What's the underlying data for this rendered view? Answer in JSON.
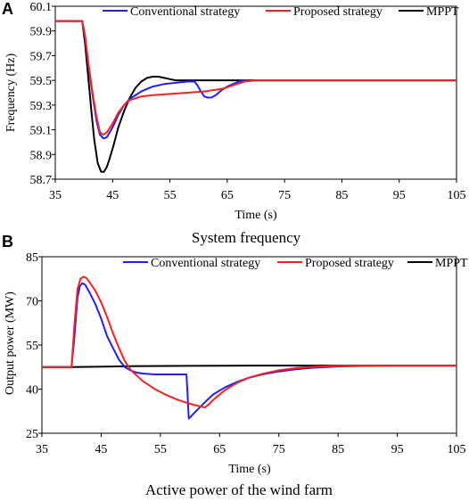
{
  "chart_data": [
    {
      "panel_label": "A",
      "type": "line",
      "caption": "System frequency",
      "xlabel": "Time (s)",
      "ylabel": "Frequency (Hz)",
      "xlim": [
        35,
        105
      ],
      "ylim": [
        58.7,
        60.1
      ],
      "xticks": [
        "35",
        "45",
        "55",
        "65",
        "75",
        "85",
        "95",
        "105"
      ],
      "yticks": [
        "58.7",
        "58.9",
        "59.1",
        "59.3",
        "59.5",
        "59.7",
        "59.9",
        "60.1"
      ],
      "legend_position": "top",
      "series": [
        {
          "name": "Conventional strategy",
          "color": "#1f1fff",
          "x": [
            35,
            39.7,
            40.2,
            40.8,
            41.5,
            42.2,
            42.8,
            43.4,
            44,
            45,
            46,
            47,
            48,
            50,
            52,
            54,
            56,
            58,
            59.3,
            59.8,
            60.4,
            61,
            61.6,
            62.2,
            63,
            64,
            65,
            66,
            67,
            68,
            70,
            75,
            85,
            95,
            105
          ],
          "y": [
            59.98,
            59.98,
            59.85,
            59.62,
            59.38,
            59.17,
            59.06,
            59.03,
            59.04,
            59.12,
            59.22,
            59.3,
            59.35,
            59.41,
            59.45,
            59.47,
            59.48,
            59.49,
            59.49,
            59.46,
            59.41,
            59.37,
            59.36,
            59.36,
            59.38,
            59.42,
            59.45,
            59.47,
            59.49,
            59.5,
            59.5,
            59.5,
            59.5,
            59.5,
            59.5
          ]
        },
        {
          "name": "Proposed strategy",
          "color": "#ff1f1f",
          "x": [
            35,
            39.7,
            40.2,
            40.8,
            41.5,
            42.2,
            42.8,
            43.4,
            44,
            45,
            46,
            47,
            48,
            50,
            52,
            55,
            58,
            61,
            64,
            66,
            68,
            70,
            75,
            85,
            95,
            105
          ],
          "y": [
            59.98,
            59.98,
            59.86,
            59.63,
            59.4,
            59.2,
            59.08,
            59.06,
            59.08,
            59.15,
            59.24,
            59.3,
            59.34,
            59.37,
            59.38,
            59.39,
            59.4,
            59.41,
            59.43,
            59.46,
            59.49,
            59.5,
            59.5,
            59.5,
            59.5,
            59.5
          ]
        },
        {
          "name": "MPPT",
          "color": "#000000",
          "x": [
            35,
            39.7,
            40.2,
            40.8,
            41.3,
            41.8,
            42.4,
            43,
            43.5,
            44,
            44.5,
            45.2,
            46,
            47,
            48,
            49,
            50,
            51,
            52,
            53,
            54,
            55,
            56,
            58,
            60,
            65,
            75,
            85,
            95,
            105
          ],
          "y": [
            59.98,
            59.98,
            59.8,
            59.5,
            59.25,
            59.02,
            58.83,
            58.76,
            58.76,
            58.8,
            58.87,
            58.98,
            59.12,
            59.25,
            59.36,
            59.44,
            59.49,
            59.52,
            59.53,
            59.53,
            59.52,
            59.51,
            59.5,
            59.5,
            59.5,
            59.5,
            59.5,
            59.5,
            59.5,
            59.5
          ]
        }
      ]
    },
    {
      "panel_label": "B",
      "type": "line",
      "caption": "Active power of the wind farm",
      "xlabel": "Time (s)",
      "ylabel": "Output power (MW)",
      "xlim": [
        35,
        105
      ],
      "ylim": [
        25,
        85
      ],
      "xticks": [
        "35",
        "45",
        "55",
        "65",
        "75",
        "85",
        "95",
        "105"
      ],
      "yticks": [
        "25",
        "40",
        "55",
        "70",
        "85"
      ],
      "legend_position": "top-right",
      "series": [
        {
          "name": "Conventional strategy",
          "color": "#1f1fff",
          "x": [
            35,
            40,
            40.5,
            41,
            41.4,
            41.8,
            42.3,
            43,
            44,
            45,
            46,
            47,
            48,
            49,
            50,
            51,
            52,
            54,
            56,
            58,
            59.4,
            59.6,
            59.8,
            60.3,
            61,
            62,
            63,
            64,
            66,
            68,
            70,
            72,
            75,
            78,
            81,
            85,
            90,
            95,
            105
          ],
          "y": [
            47.5,
            47.5,
            58,
            71,
            75,
            76,
            75.5,
            73,
            69,
            64,
            58,
            54,
            50,
            47.5,
            46.3,
            45.6,
            45.3,
            45,
            45,
            45,
            45,
            38,
            30,
            31,
            32.5,
            34.5,
            36.5,
            38.3,
            40.7,
            42.5,
            43.9,
            44.9,
            46,
            46.8,
            47.3,
            47.7,
            47.9,
            48,
            48
          ]
        },
        {
          "name": "Proposed strategy",
          "color": "#ff1f1f",
          "x": [
            35,
            40,
            40.5,
            41,
            41.5,
            42,
            42.5,
            43,
            44,
            45,
            46,
            47,
            48,
            49,
            50,
            52,
            54,
            56,
            58,
            60,
            62,
            62.5,
            63,
            64,
            66,
            68,
            70,
            72,
            75,
            78,
            81,
            85,
            90,
            95,
            105
          ],
          "y": [
            47.5,
            47.5,
            62,
            74,
            77.5,
            78.2,
            77.8,
            76.5,
            73.5,
            69.5,
            64.5,
            59,
            54,
            49.5,
            46.5,
            42.8,
            40.1,
            38,
            36.3,
            35,
            34,
            33.8,
            34.5,
            36.5,
            39.8,
            42.2,
            43.9,
            45.1,
            46.4,
            47.2,
            47.6,
            47.9,
            48,
            48,
            48
          ]
        },
        {
          "name": "MPPT",
          "color": "#000000",
          "x": [
            35,
            40,
            50,
            60,
            70,
            85,
            105
          ],
          "y": [
            47.5,
            47.5,
            47.8,
            47.9,
            48,
            48,
            48
          ]
        }
      ]
    }
  ]
}
